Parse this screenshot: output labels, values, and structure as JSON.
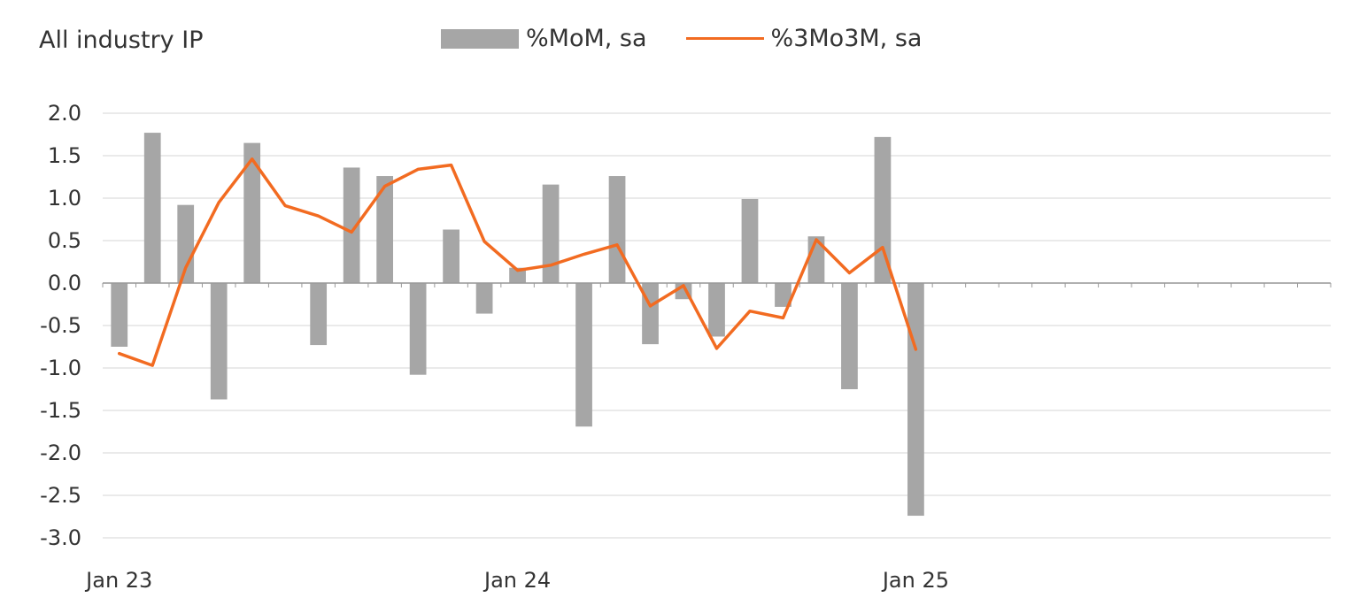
{
  "chart_data": {
    "type": "bar",
    "title": "All industry IP",
    "xlabel": "",
    "ylabel": "",
    "ylim": [
      -3.0,
      2.0
    ],
    "y_ticks": [
      "2.0",
      "1.5",
      "1.0",
      "0.5",
      "0.0",
      "-0.5",
      "-1.0",
      "-1.5",
      "-2.0",
      "-2.5",
      "-3.0"
    ],
    "x_ticks": [
      "Jan 23",
      "Jan 24",
      "Jan 25"
    ],
    "x_tick_positions": [
      0,
      12,
      24
    ],
    "x_range": [
      -0.5,
      36.5
    ],
    "grid": true,
    "legend_position": "top",
    "categories": [
      "Jan 23",
      "Feb 23",
      "Mar 23",
      "Apr 23",
      "May 23",
      "Jun 23",
      "Jul 23",
      "Aug 23",
      "Sep 23",
      "Oct 23",
      "Nov 23",
      "Dec 23",
      "Jan 24",
      "Feb 24",
      "Mar 24",
      "Apr 24",
      "May 24",
      "Jun 24",
      "Jul 24",
      "Aug 24",
      "Sep 24",
      "Oct 24",
      "Nov 24",
      "Dec 24",
      "Jan 25"
    ],
    "series": [
      {
        "name": "%MoM, sa",
        "type": "bar",
        "color": "#a6a6a6",
        "values": [
          -0.75,
          1.77,
          0.92,
          -1.37,
          1.65,
          0.0,
          -0.73,
          1.36,
          1.26,
          -1.08,
          0.63,
          -0.36,
          0.18,
          1.16,
          -1.69,
          1.26,
          -0.72,
          -0.19,
          -0.63,
          0.99,
          -0.28,
          0.55,
          -1.25,
          1.72,
          -2.74
        ]
      },
      {
        "name": "%3Mo3M, sa",
        "type": "line",
        "color": "#f26b21",
        "values": [
          -0.83,
          -0.97,
          0.18,
          0.95,
          1.46,
          0.91,
          0.79,
          0.6,
          1.14,
          1.34,
          1.39,
          0.49,
          0.15,
          0.21,
          0.34,
          0.45,
          -0.27,
          -0.03,
          -0.77,
          -0.33,
          -0.41,
          0.51,
          0.12,
          0.42,
          -0.78
        ]
      }
    ]
  }
}
